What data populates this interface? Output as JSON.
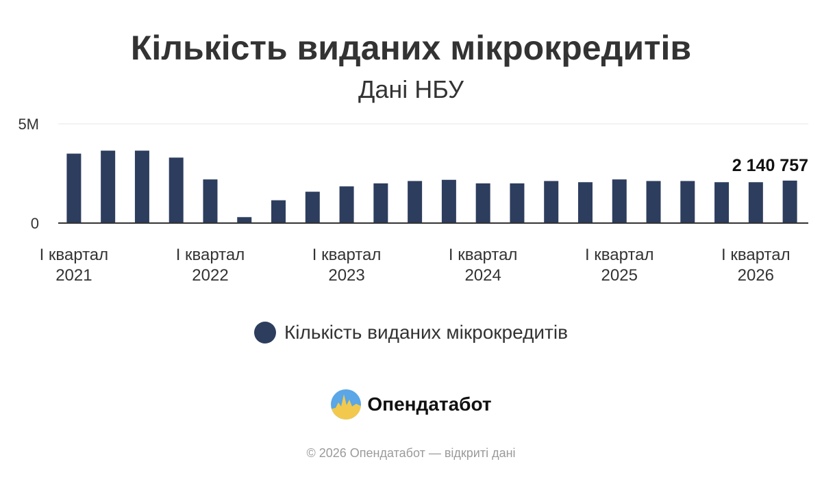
{
  "header": {
    "title": "Кількість виданих мікрокредитів",
    "subtitle": "Дані НБУ"
  },
  "chart_data": {
    "type": "bar",
    "title": "Кількість виданих мікрокредитів",
    "subtitle": "Дані НБУ",
    "xlabel": "",
    "ylabel": "",
    "ylim": [
      0,
      5000000
    ],
    "y_ticks": [
      0,
      5000000
    ],
    "y_tick_labels": [
      "0",
      "5M"
    ],
    "grid": true,
    "legend_position": "bottom",
    "x_tick_labels": [
      {
        "index": 0,
        "line1": "I квартал",
        "line2": "2021"
      },
      {
        "index": 4,
        "line1": "I квартал",
        "line2": "2022"
      },
      {
        "index": 8,
        "line1": "I квартал",
        "line2": "2023"
      },
      {
        "index": 12,
        "line1": "I квартал",
        "line2": "2024"
      },
      {
        "index": 16,
        "line1": "I квартал",
        "line2": "2025"
      },
      {
        "index": 20,
        "line1": "I квартал",
        "line2": "2026"
      }
    ],
    "series": [
      {
        "name": "Кількість виданих мікрокредитів",
        "color": "#2d3d5e",
        "values": [
          3500000,
          3650000,
          3650000,
          3300000,
          2200000,
          300000,
          1150000,
          1580000,
          1850000,
          2000000,
          2120000,
          2180000,
          2000000,
          2000000,
          2120000,
          2060000,
          2200000,
          2120000,
          2120000,
          2060000,
          2060000,
          2140757
        ]
      }
    ],
    "data_labels": [
      {
        "index": 21,
        "text": "2 140 757"
      }
    ]
  },
  "legend": {
    "label": "Кількість виданих мікрокредитів",
    "color": "#2d3d5e"
  },
  "brand": {
    "name": "Опендатабот",
    "logo_icon": "opendatabot-logo-icon"
  },
  "footer": {
    "text": "© 2026 Опендатабот — відкриті дані"
  }
}
